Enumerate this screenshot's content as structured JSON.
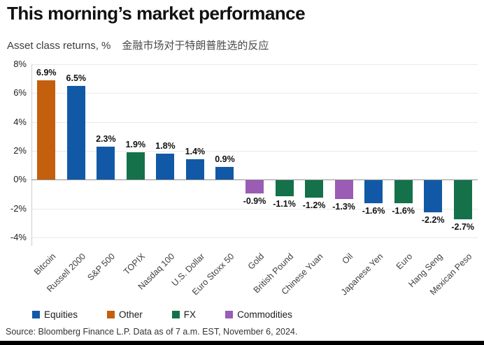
{
  "header": {
    "title": "This morning’s market performance",
    "subtitle_left": "Asset class returns, %",
    "subtitle_right": "金融市场对于特朗普胜选的反应"
  },
  "chart_data": {
    "type": "bar",
    "categories": [
      "Bitcoin",
      "Russell 2000",
      "S&P 500",
      "TOPIX",
      "Nasdaq 100",
      "U.S. Dollar",
      "Euro Stoxx 50",
      "Gold",
      "British Pound",
      "Chinese Yuan",
      "Oil",
      "Japanese Yen",
      "Euro",
      "Hang Seng",
      "Mexican Peso"
    ],
    "values": [
      6.9,
      6.5,
      2.3,
      1.9,
      1.8,
      1.4,
      0.9,
      -0.9,
      -1.1,
      -1.2,
      -1.3,
      -1.6,
      -1.6,
      -2.2,
      -2.7
    ],
    "bar_labels": [
      "6.9%",
      "6.5%",
      "2.3%",
      "1.9%",
      "1.8%",
      "1.4%",
      "0.9%",
      "-0.9%",
      "-1.1%",
      "-1.2%",
      "-1.3%",
      "-1.6%",
      "-1.6%",
      "-2.2%",
      "-2.7%"
    ],
    "groups": [
      "Other",
      "Equities",
      "Equities",
      "FX",
      "Equities",
      "Equities",
      "Equities",
      "Commodities",
      "FX",
      "FX",
      "Commodities",
      "Equities",
      "FX",
      "Equities",
      "FX"
    ],
    "title": "This morning’s market performance",
    "xlabel": "",
    "ylabel": "Asset class returns, %",
    "ylim": [
      -4,
      8
    ],
    "yticks": [
      8,
      6,
      4,
      2,
      0,
      -2,
      -4
    ],
    "ytick_labels": [
      "8%",
      "6%",
      "4%",
      "2%",
      "0%",
      "-2%",
      "-4%"
    ],
    "grid": "horizontal",
    "legend_position": "bottom"
  },
  "legend": {
    "items": [
      {
        "label": "Equities",
        "color": "#1159A6"
      },
      {
        "label": "Other",
        "color": "#C45F0E"
      },
      {
        "label": "FX",
        "color": "#14714A"
      },
      {
        "label": "Commodities",
        "color": "#9A5CB4"
      }
    ]
  },
  "colors": {
    "Equities": "#1159A6",
    "Other": "#C45F0E",
    "FX": "#14714A",
    "Commodities": "#9A5CB4",
    "gridline": "#e9e9e9",
    "zeroline": "#8f8f8f",
    "bottom_bar": "#000000"
  },
  "footer": {
    "source": "Source: Bloomberg Finance L.P. Data as of 7 a.m. EST, November 6, 2024."
  }
}
